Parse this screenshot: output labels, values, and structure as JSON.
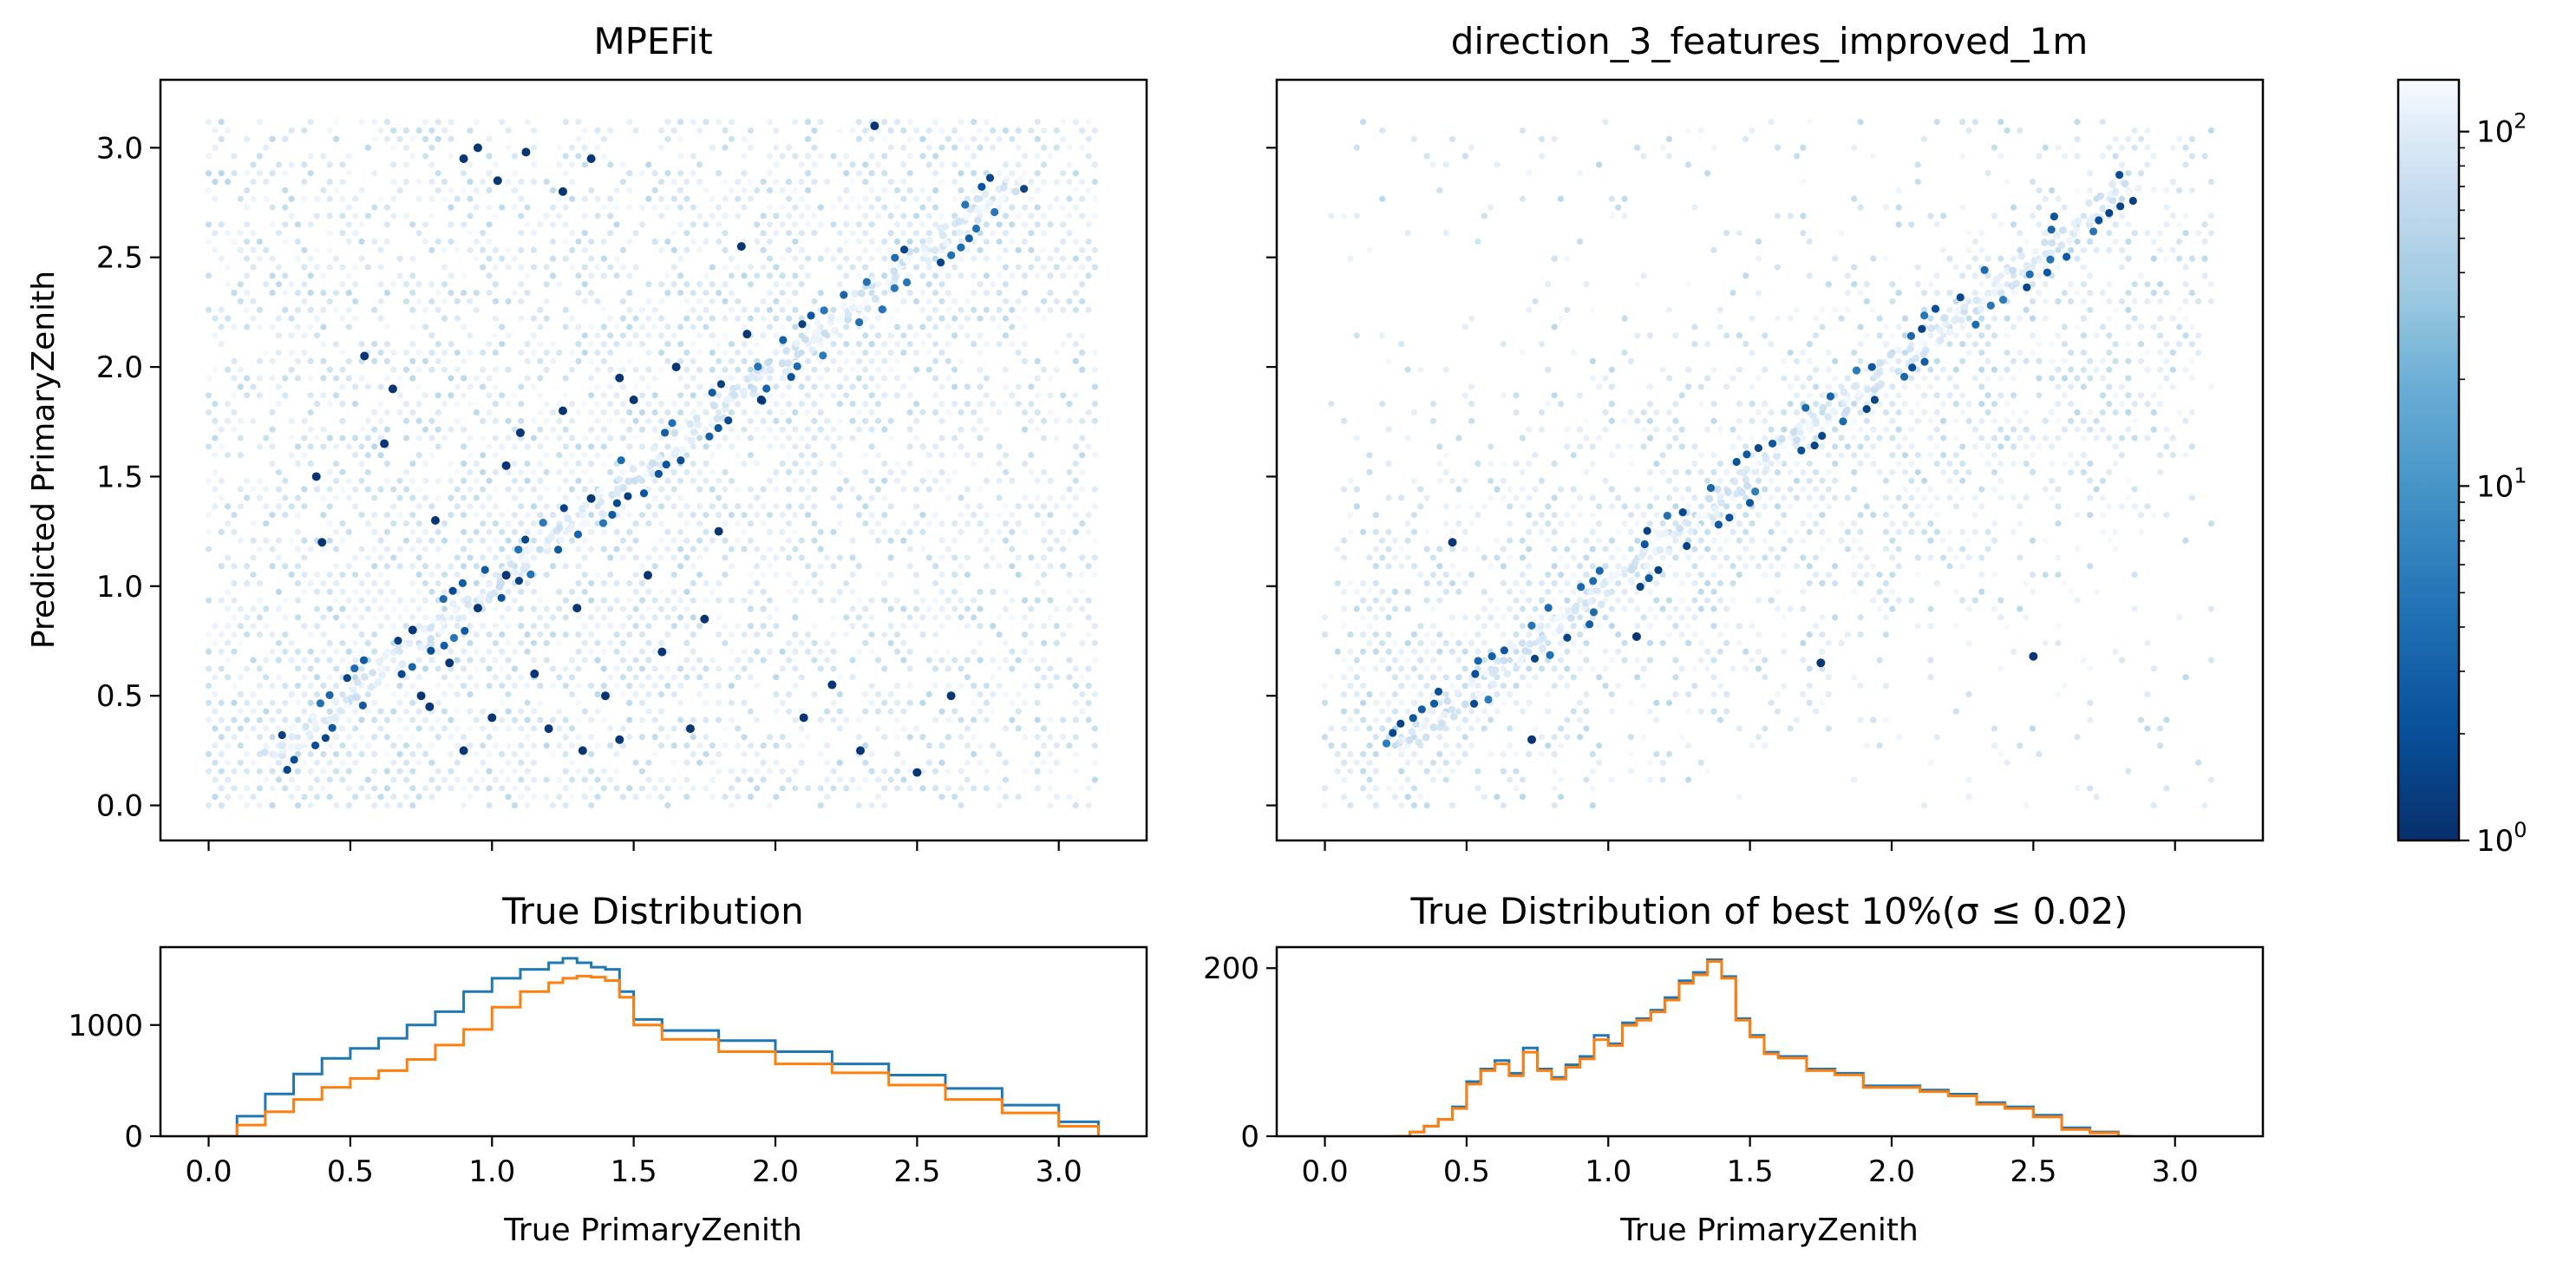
{
  "figure_title": "",
  "colors": {
    "hexbin_colormap": "Blues_r",
    "hist_true": "#1f77b4",
    "hist_selected": "#ff7f0e",
    "colorbar_low": "#08306b",
    "colorbar_high": "#f7fbff"
  },
  "chart_data": [
    {
      "id": "mpefit",
      "type": "heatmap",
      "subtype": "hexbin",
      "title": "MPEFit",
      "xlabel": "",
      "ylabel": "Predicted PrimaryZenith",
      "xlim": [
        -0.17,
        3.31
      ],
      "ylim": [
        -0.16,
        3.31
      ],
      "xticks": [
        0.0,
        0.5,
        1.0,
        1.5,
        2.0,
        2.5,
        3.0
      ],
      "yticks": [
        0.0,
        0.5,
        1.0,
        1.5,
        2.0,
        2.5,
        3.0
      ],
      "ytick_labels": [
        "0.0",
        "0.5",
        "1.0",
        "1.5",
        "2.0",
        "2.5",
        "3.0"
      ],
      "show_xtick_labels": false,
      "show_ytick_labels": true,
      "diagonal_range": [
        0.22,
        2.87
      ],
      "outlier_points": [
        [
          0.38,
          1.5
        ],
        [
          0.4,
          1.2
        ],
        [
          0.62,
          1.65
        ],
        [
          0.55,
          2.05
        ],
        [
          0.65,
          1.9
        ],
        [
          0.72,
          0.8
        ],
        [
          0.75,
          0.5
        ],
        [
          0.8,
          1.3
        ],
        [
          0.85,
          0.65
        ],
        [
          0.95,
          0.9
        ],
        [
          1.0,
          0.4
        ],
        [
          1.05,
          1.55
        ],
        [
          1.1,
          1.7
        ],
        [
          1.15,
          0.6
        ],
        [
          1.2,
          0.35
        ],
        [
          1.25,
          1.8
        ],
        [
          1.3,
          0.9
        ],
        [
          1.32,
          0.25
        ],
        [
          1.35,
          1.4
        ],
        [
          1.4,
          0.5
        ],
        [
          1.45,
          1.95
        ],
        [
          1.5,
          1.85
        ],
        [
          1.6,
          0.7
        ],
        [
          1.65,
          2.0
        ],
        [
          1.7,
          0.35
        ],
        [
          1.8,
          1.25
        ],
        [
          1.9,
          2.15
        ],
        [
          1.95,
          1.85
        ],
        [
          2.1,
          0.4
        ],
        [
          2.2,
          0.55
        ],
        [
          0.9,
          2.95
        ],
        [
          1.02,
          2.85
        ],
        [
          1.12,
          2.98
        ],
        [
          1.25,
          2.8
        ],
        [
          1.35,
          2.95
        ],
        [
          0.95,
          3.0
        ],
        [
          1.88,
          2.55
        ],
        [
          2.35,
          3.1
        ],
        [
          2.5,
          0.15
        ],
        [
          2.62,
          0.5
        ],
        [
          1.55,
          1.05
        ],
        [
          1.75,
          0.85
        ],
        [
          1.05,
          1.05
        ],
        [
          0.9,
          0.25
        ],
        [
          0.78,
          0.45
        ],
        [
          1.45,
          0.3
        ],
        [
          2.3,
          0.25
        ]
      ],
      "outlier_value": 1,
      "color_scale": "log"
    },
    {
      "id": "direction",
      "type": "heatmap",
      "subtype": "hexbin",
      "title": "direction_3_features_improved_1m",
      "xlabel": "",
      "ylabel": "",
      "xlim": [
        -0.17,
        3.31
      ],
      "ylim": [
        -0.16,
        3.31
      ],
      "xticks": [
        0.0,
        0.5,
        1.0,
        1.5,
        2.0,
        2.5,
        3.0
      ],
      "yticks": [
        0.0,
        0.5,
        1.0,
        1.5,
        2.0,
        2.5,
        3.0
      ],
      "show_xtick_labels": false,
      "show_ytick_labels": false,
      "diagonal_range": [
        0.25,
        2.85
      ],
      "outlier_points": [
        [
          0.45,
          1.2
        ],
        [
          0.73,
          0.3
        ],
        [
          1.1,
          0.77
        ],
        [
          1.75,
          0.65
        ],
        [
          2.5,
          0.68
        ]
      ],
      "outlier_value": 1,
      "color_scale": "log"
    },
    {
      "id": "colorbar",
      "type": "heatmap",
      "subtype": "colorbar",
      "scale": "log",
      "range": [
        1,
        140
      ],
      "tick_labels": [
        {
          "base": "10",
          "exp": "0",
          "value": 1
        },
        {
          "base": "10",
          "exp": "1",
          "value": 10
        },
        {
          "base": "10",
          "exp": "2",
          "value": 100
        }
      ]
    },
    {
      "id": "true-dist",
      "type": "line",
      "subtype": "step-histogram",
      "title": "True Distribution",
      "xlabel": "True PrimaryZenith",
      "ylabel": "",
      "xlim": [
        -0.17,
        3.31
      ],
      "ylim": [
        0,
        1700
      ],
      "xticks": [
        0.0,
        0.5,
        1.0,
        1.5,
        2.0,
        2.5,
        3.0
      ],
      "xtick_labels": [
        "0.0",
        "0.5",
        "1.0",
        "1.5",
        "2.0",
        "2.5",
        "3.0"
      ],
      "yticks": [
        0,
        1000
      ],
      "ytick_labels": [
        "0",
        "1000"
      ],
      "series": [
        {
          "color": "#1f77b4",
          "x": [
            0.0,
            0.1,
            0.2,
            0.3,
            0.4,
            0.5,
            0.6,
            0.7,
            0.8,
            0.9,
            1.0,
            1.1,
            1.2,
            1.25,
            1.3,
            1.35,
            1.4,
            1.45,
            1.5,
            1.6,
            1.8,
            2.0,
            2.2,
            2.4,
            2.6,
            2.8,
            3.0,
            3.14
          ],
          "y": [
            0,
            180,
            380,
            560,
            700,
            790,
            880,
            1000,
            1120,
            1300,
            1420,
            1500,
            1560,
            1600,
            1560,
            1520,
            1500,
            1300,
            1050,
            950,
            860,
            760,
            650,
            550,
            430,
            280,
            130,
            0
          ]
        },
        {
          "color": "#ff7f0e",
          "x": [
            0.0,
            0.1,
            0.2,
            0.3,
            0.4,
            0.5,
            0.6,
            0.7,
            0.8,
            0.9,
            1.0,
            1.1,
            1.2,
            1.25,
            1.3,
            1.35,
            1.4,
            1.45,
            1.5,
            1.6,
            1.8,
            2.0,
            2.2,
            2.4,
            2.6,
            2.8,
            3.0,
            3.14
          ],
          "y": [
            0,
            100,
            220,
            330,
            440,
            520,
            590,
            690,
            820,
            960,
            1160,
            1300,
            1380,
            1420,
            1440,
            1430,
            1400,
            1250,
            1000,
            870,
            760,
            650,
            570,
            460,
            330,
            210,
            90,
            0
          ]
        }
      ]
    },
    {
      "id": "best-dist",
      "type": "line",
      "subtype": "step-histogram",
      "title": "True Distribution of best 10%(σ ≤ 0.02)",
      "xlabel": "True PrimaryZenith",
      "ylabel": "",
      "xlim": [
        -0.17,
        3.31
      ],
      "ylim": [
        0,
        225
      ],
      "xticks": [
        0.0,
        0.5,
        1.0,
        1.5,
        2.0,
        2.5,
        3.0
      ],
      "xtick_labels": [
        "0.0",
        "0.5",
        "1.0",
        "1.5",
        "2.0",
        "2.5",
        "3.0"
      ],
      "yticks": [
        0,
        200
      ],
      "ytick_labels": [
        "0",
        "200"
      ],
      "series": [
        {
          "color": "#1f77b4",
          "x": [
            0.25,
            0.3,
            0.35,
            0.4,
            0.45,
            0.5,
            0.55,
            0.6,
            0.65,
            0.7,
            0.75,
            0.8,
            0.85,
            0.9,
            0.95,
            1.0,
            1.05,
            1.1,
            1.15,
            1.2,
            1.25,
            1.3,
            1.35,
            1.4,
            1.45,
            1.5,
            1.55,
            1.6,
            1.7,
            1.8,
            1.9,
            2.0,
            2.1,
            2.2,
            2.3,
            2.4,
            2.5,
            2.6,
            2.7,
            2.8,
            2.85
          ],
          "y": [
            0,
            5,
            12,
            20,
            35,
            65,
            80,
            90,
            75,
            105,
            80,
            70,
            85,
            95,
            120,
            110,
            135,
            140,
            150,
            165,
            185,
            195,
            210,
            190,
            140,
            120,
            100,
            95,
            80,
            75,
            60,
            60,
            55,
            50,
            40,
            35,
            25,
            10,
            5,
            0,
            0
          ]
        },
        {
          "color": "#ff7f0e",
          "x": [
            0.25,
            0.3,
            0.35,
            0.4,
            0.45,
            0.5,
            0.55,
            0.6,
            0.65,
            0.7,
            0.75,
            0.8,
            0.85,
            0.9,
            0.95,
            1.0,
            1.05,
            1.1,
            1.15,
            1.2,
            1.25,
            1.3,
            1.35,
            1.4,
            1.45,
            1.5,
            1.55,
            1.6,
            1.7,
            1.8,
            1.9,
            2.0,
            2.1,
            2.2,
            2.3,
            2.4,
            2.5,
            2.6,
            2.7,
            2.8,
            2.85
          ],
          "y": [
            0,
            5,
            12,
            20,
            33,
            62,
            78,
            86,
            72,
            100,
            78,
            68,
            82,
            92,
            115,
            108,
            132,
            138,
            148,
            162,
            182,
            192,
            208,
            188,
            138,
            118,
            98,
            93,
            78,
            73,
            58,
            58,
            53,
            48,
            38,
            33,
            23,
            8,
            4,
            0,
            0
          ]
        }
      ]
    }
  ]
}
